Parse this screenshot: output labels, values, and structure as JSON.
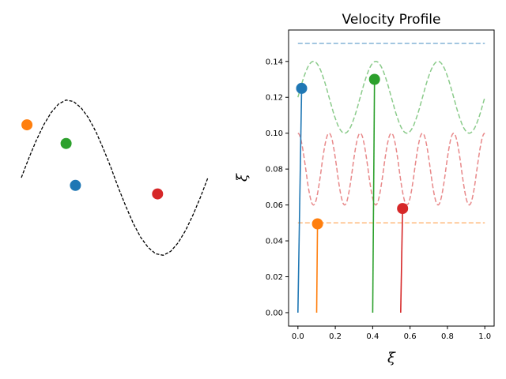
{
  "chart_data": [
    {
      "type": "scatter",
      "panel": "left",
      "title": "",
      "xlabel": "",
      "ylabel": "",
      "axes_visible": false,
      "xlim": [
        0,
        1
      ],
      "ylim": [
        -1.2,
        1.2
      ],
      "curve": {
        "name": "",
        "style": "dashed",
        "color": "#000000",
        "x": [
          0.0,
          0.04,
          0.08,
          0.12,
          0.16,
          0.2,
          0.24,
          0.28,
          0.32,
          0.36,
          0.4,
          0.44,
          0.48,
          0.52,
          0.56,
          0.6,
          0.64,
          0.68,
          0.72,
          0.76,
          0.8,
          0.84,
          0.88,
          0.92,
          0.96,
          1.0
        ],
        "y": [
          0.0,
          0.25,
          0.48,
          0.68,
          0.84,
          0.95,
          1.0,
          0.98,
          0.9,
          0.77,
          0.59,
          0.37,
          0.13,
          -0.13,
          -0.37,
          -0.59,
          -0.77,
          -0.9,
          -0.98,
          -1.0,
          -0.95,
          -0.84,
          -0.68,
          -0.48,
          -0.25,
          0.0
        ]
      },
      "points": [
        {
          "x": 0.03,
          "y": 0.68,
          "color": "#ff7f0e"
        },
        {
          "x": 0.24,
          "y": 0.44,
          "color": "#2ca02c"
        },
        {
          "x": 0.29,
          "y": -0.1,
          "color": "#1f77b4"
        },
        {
          "x": 0.73,
          "y": -0.21,
          "color": "#d62728"
        }
      ]
    },
    {
      "type": "line",
      "panel": "right",
      "title": "Velocity Profile",
      "xlabel": "ξ",
      "ylabel": "ξ̇",
      "xlim": [
        -0.05,
        1.05
      ],
      "ylim": [
        -0.0075,
        0.1575
      ],
      "xticks": [
        "0.0",
        "0.2",
        "0.4",
        "0.6",
        "0.8",
        "1.0"
      ],
      "xtick_values": [
        0,
        0.2,
        0.4,
        0.6,
        0.8,
        1.0
      ],
      "yticks": [
        "0.00",
        "0.02",
        "0.04",
        "0.06",
        "0.08",
        "0.10",
        "0.12",
        "0.14"
      ],
      "ytick_values": [
        0,
        0.02,
        0.04,
        0.06,
        0.08,
        0.1,
        0.12,
        0.14
      ],
      "grid": false,
      "reference_curves": [
        {
          "style": "dashed",
          "color": "#1f77b4",
          "kind": "constant",
          "value": 0.15
        },
        {
          "style": "dashed",
          "color": "#2ca02c",
          "kind": "sine",
          "mean": 0.12,
          "amplitude": 0.02,
          "cycles": 3
        },
        {
          "style": "dashed",
          "color": "#d62728",
          "kind": "cosine",
          "mean": 0.08,
          "amplitude": 0.02,
          "cycles": 6
        },
        {
          "style": "dashed",
          "color": "#ff7f0e",
          "kind": "constant",
          "value": 0.05
        }
      ],
      "series": [
        {
          "color": "#1f77b4",
          "x": [
            0.0,
            0.02
          ],
          "y": [
            0.0,
            0.125
          ]
        },
        {
          "color": "#ff7f0e",
          "x": [
            0.1,
            0.105
          ],
          "y": [
            0.0,
            0.0495
          ]
        },
        {
          "color": "#2ca02c",
          "x": [
            0.4,
            0.41
          ],
          "y": [
            0.0,
            0.13
          ]
        },
        {
          "color": "#d62728",
          "x": [
            0.55,
            0.56
          ],
          "y": [
            0.0,
            0.058
          ]
        }
      ]
    }
  ]
}
